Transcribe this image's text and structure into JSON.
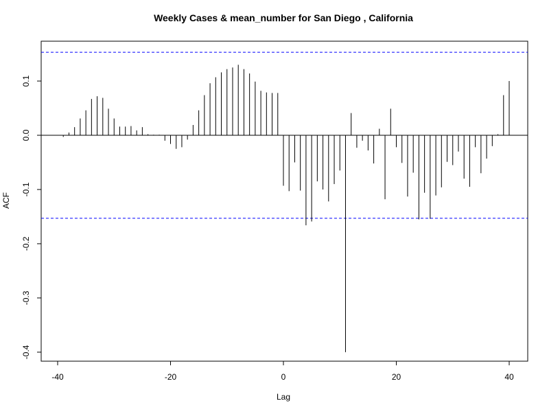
{
  "chart_data": {
    "type": "bar",
    "title": "Weekly Cases & mean_number for San Diego , California",
    "xlabel": "Lag",
    "ylabel": "ACF",
    "xlim": [
      -40,
      40
    ],
    "ylim": [
      -0.4,
      0.15
    ],
    "x_ticks": [
      -40,
      -20,
      0,
      20,
      40
    ],
    "y_ticks": [
      -0.4,
      -0.3,
      -0.2,
      -0.1,
      0.0,
      0.1
    ],
    "y_tick_labels": [
      "-0.4",
      "-0.3",
      "-0.2",
      "-0.1",
      "0.0",
      "0.1"
    ],
    "confidence_bound": 0.153,
    "grid": false,
    "colors": {
      "bars": "#000000",
      "ci_lines": "#0000ff",
      "zero_line": "#000000"
    },
    "x": [
      -39,
      -38,
      -37,
      -36,
      -35,
      -34,
      -33,
      -32,
      -31,
      -30,
      -29,
      -28,
      -27,
      -26,
      -25,
      -24,
      -23,
      -22,
      -21,
      -20,
      -19,
      -18,
      -17,
      -16,
      -15,
      -14,
      -13,
      -12,
      -11,
      -10,
      -9,
      -8,
      -7,
      -6,
      -5,
      -4,
      -3,
      -2,
      -1,
      0,
      1,
      2,
      3,
      4,
      5,
      6,
      7,
      8,
      9,
      10,
      11,
      12,
      13,
      14,
      15,
      16,
      17,
      18,
      19,
      20,
      21,
      22,
      23,
      24,
      25,
      26,
      27,
      28,
      29,
      30,
      31,
      32,
      33,
      34,
      35,
      36,
      37,
      38,
      39,
      40
    ],
    "values": [
      -0.003,
      0.005,
      0.015,
      0.031,
      0.046,
      0.067,
      0.072,
      0.069,
      0.049,
      0.031,
      0.016,
      0.016,
      0.017,
      0.009,
      0.015,
      0.002,
      0.001,
      0.001,
      -0.01,
      -0.016,
      -0.025,
      -0.022,
      -0.008,
      0.019,
      0.046,
      0.074,
      0.096,
      0.107,
      0.116,
      0.122,
      0.125,
      0.13,
      0.122,
      0.114,
      0.099,
      0.082,
      0.079,
      0.078,
      0.078,
      -0.093,
      -0.103,
      -0.05,
      -0.102,
      -0.166,
      -0.159,
      -0.085,
      -0.1,
      -0.122,
      -0.09,
      -0.065,
      -0.4,
      0.041,
      -0.023,
      -0.01,
      -0.028,
      -0.052,
      0.012,
      -0.118,
      0.049,
      -0.022,
      -0.051,
      -0.113,
      -0.069,
      -0.155,
      -0.106,
      -0.154,
      -0.111,
      -0.096,
      -0.049,
      -0.055,
      -0.03,
      -0.08,
      -0.095,
      -0.022,
      -0.07,
      -0.043,
      -0.02,
      0.002,
      0.074,
      0.1
    ]
  }
}
